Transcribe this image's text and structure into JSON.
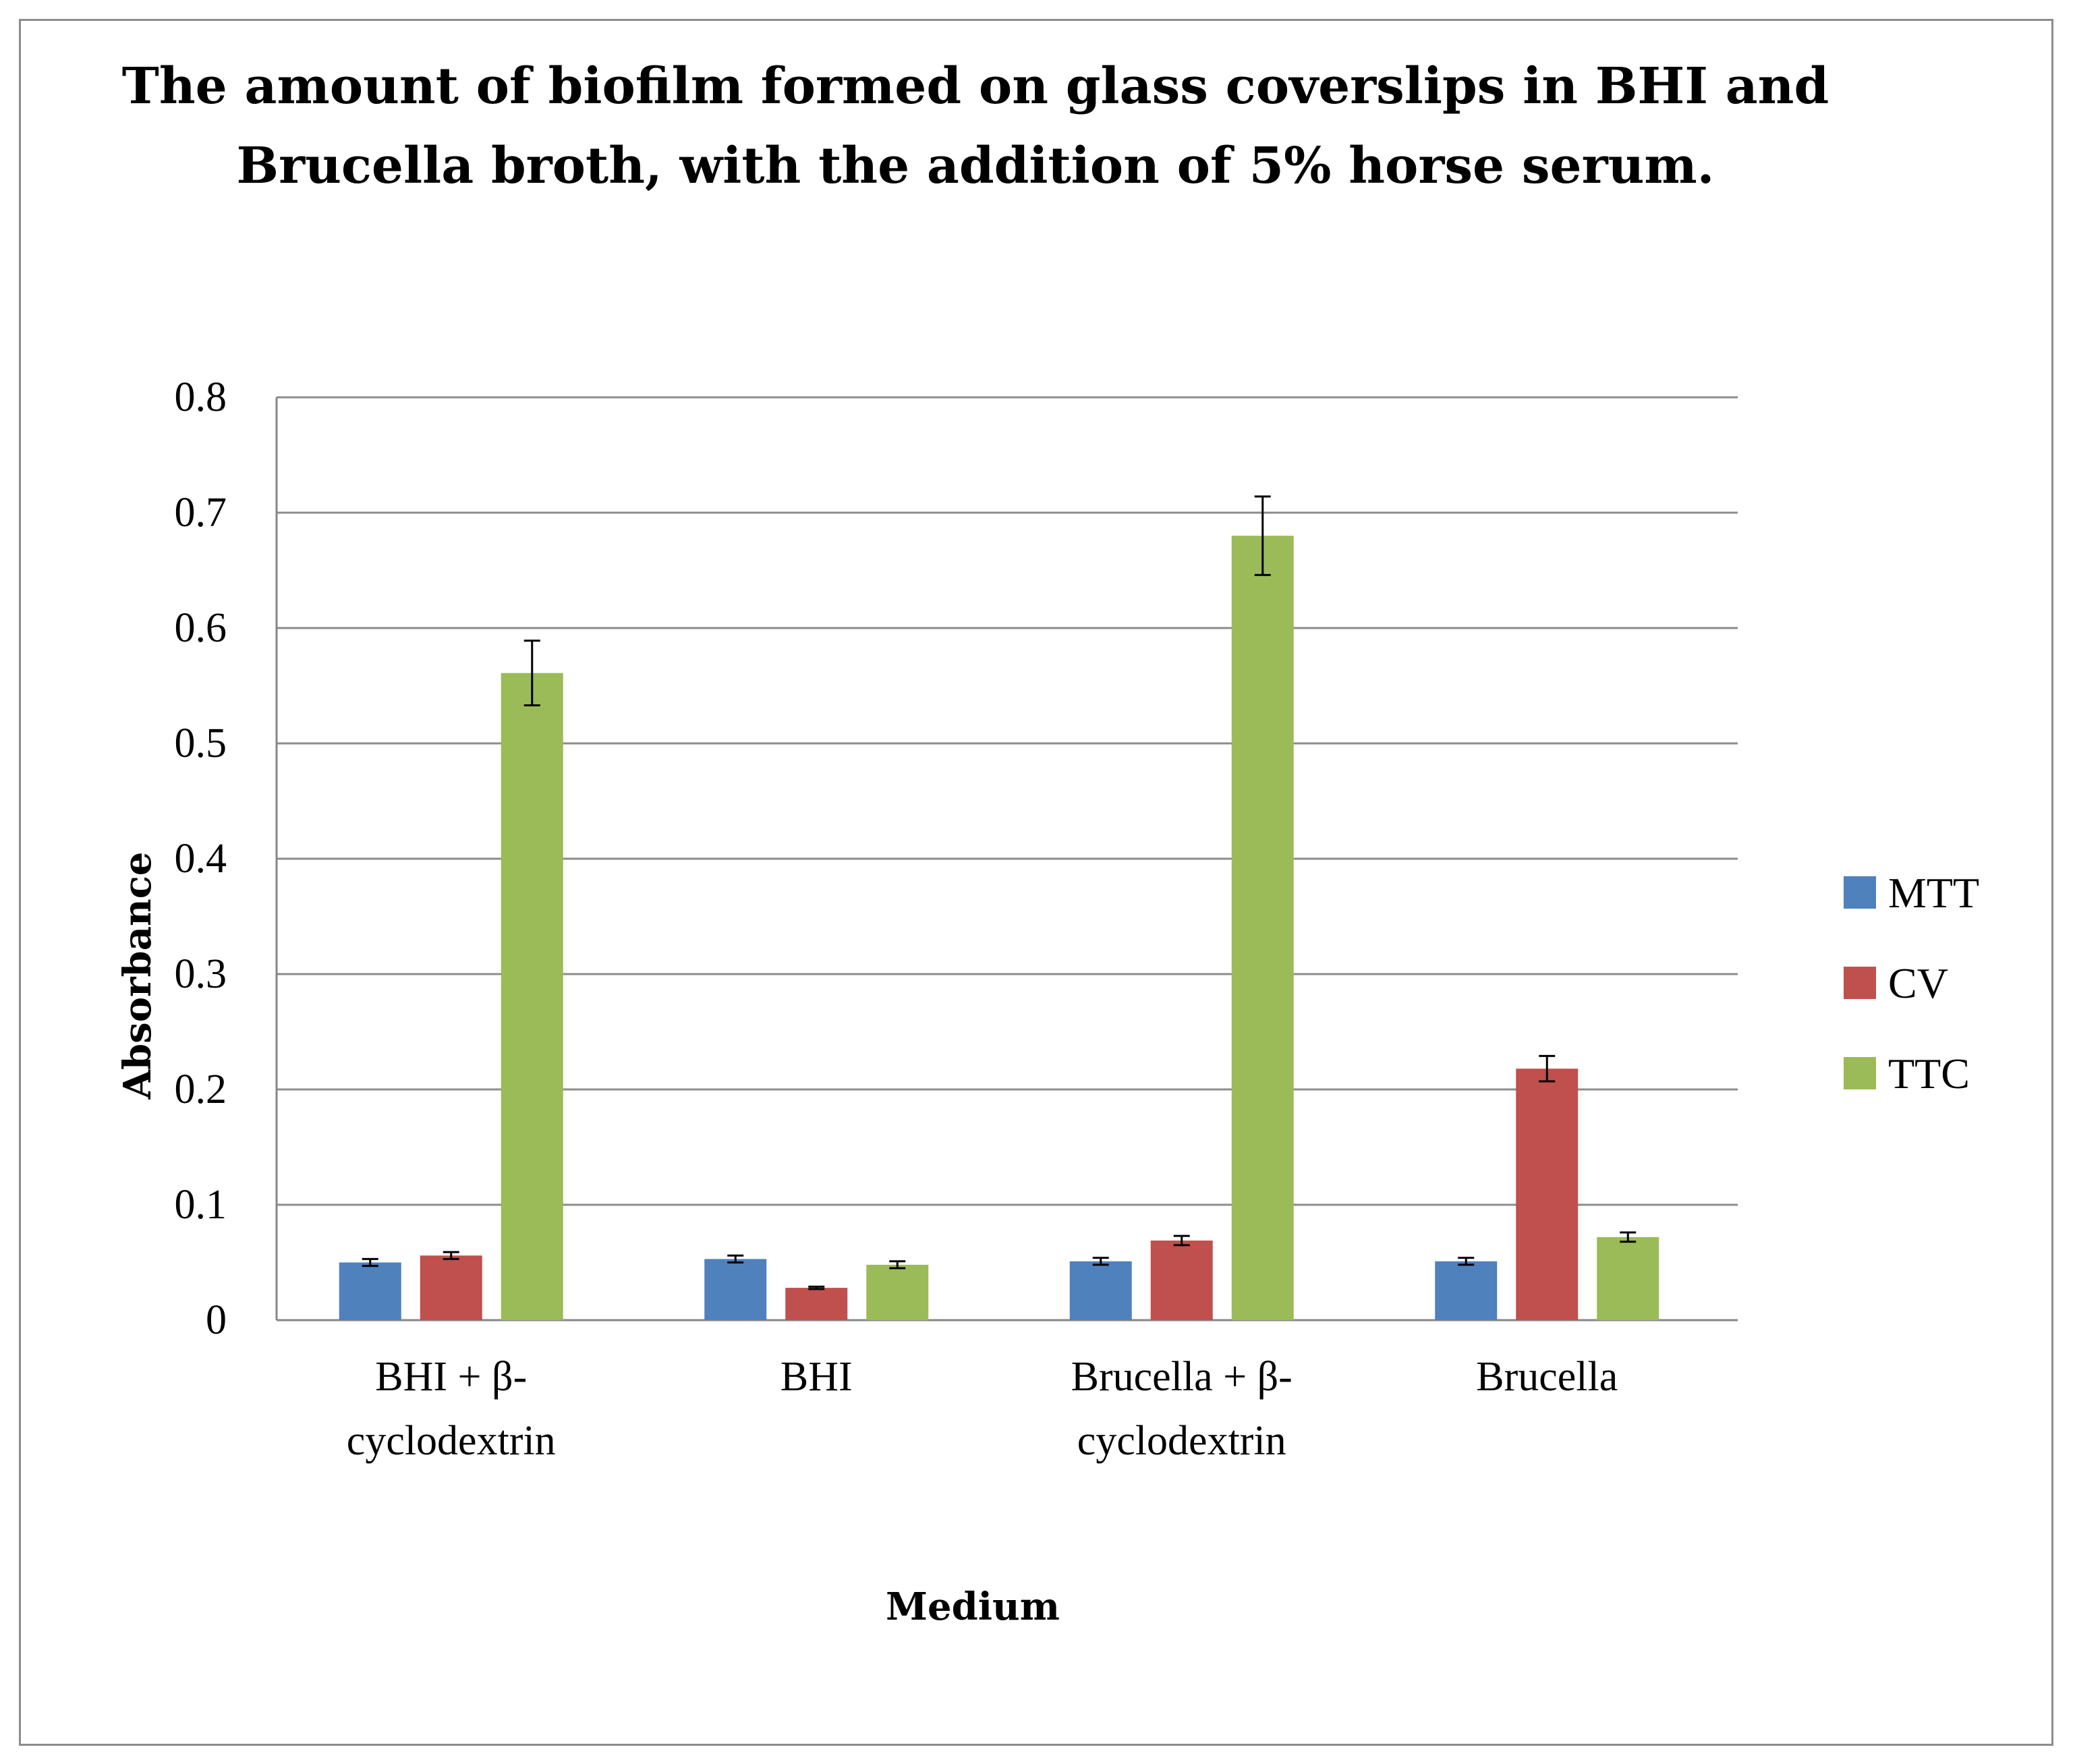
{
  "chart_data": {
    "type": "bar",
    "title_lines": [
      "The amount of biofilm formed on glass coverslips in BHI and",
      "Brucella broth, with the addition of 5% horse serum."
    ],
    "xlabel": "Medium",
    "ylabel": "Absorbance",
    "ylim": [
      0,
      0.8
    ],
    "ytick_labels": [
      "0",
      "0.1",
      "0.2",
      "0.3",
      "0.4",
      "0.5",
      "0.6",
      "0.7",
      "0.8"
    ],
    "grid": true,
    "legend_position": "right",
    "categories": [
      {
        "lines": [
          "BHI + β-",
          "cyclodextrin"
        ]
      },
      {
        "lines": [
          "BHI"
        ]
      },
      {
        "lines": [
          "Brucella + β-",
          "cyclodextrin"
        ]
      },
      {
        "lines": [
          "Brucella"
        ]
      }
    ],
    "series": [
      {
        "name": "MTT",
        "color": "#4f81bd",
        "values": [
          0.05,
          0.053,
          0.051,
          0.051
        ],
        "errors": [
          0.003,
          0.003,
          0.003,
          0.003
        ]
      },
      {
        "name": "CV",
        "color": "#c0504d",
        "values": [
          0.056,
          0.028,
          0.069,
          0.218
        ],
        "errors": [
          0.003,
          0.001,
          0.004,
          0.011
        ]
      },
      {
        "name": "TTC",
        "color": "#9bbb59",
        "values": [
          0.561,
          0.048,
          0.68,
          0.072
        ],
        "errors": [
          0.028,
          0.003,
          0.034,
          0.004
        ]
      }
    ]
  }
}
